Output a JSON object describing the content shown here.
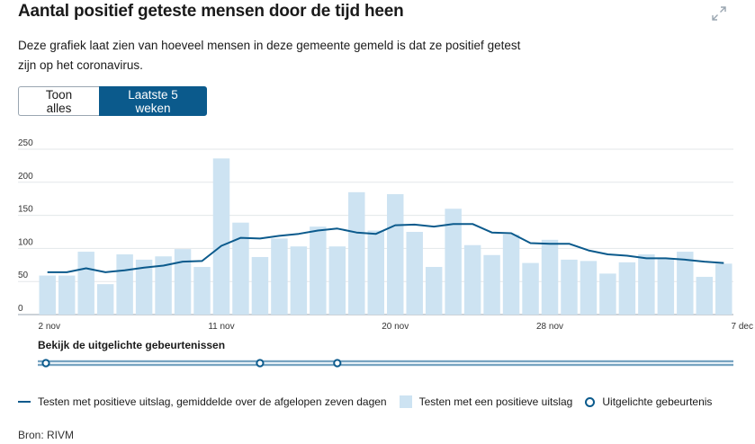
{
  "header": {
    "title": "Aantal positief geteste mensen door de tijd heen",
    "description": "Deze grafiek laat zien van hoeveel mensen in deze gemeente gemeld is dat ze positief getest zijn op het coronavirus.",
    "expand_icon": "expand-icon"
  },
  "toggle": {
    "show_all": "Toon alles",
    "last_5_weeks": "Laatste 5 weken",
    "selected": "last_5_weeks"
  },
  "chart_data": {
    "type": "bar",
    "title": "Aantal positief geteste mensen door de tijd heen",
    "ylim": [
      0,
      250
    ],
    "yticks": [
      0,
      50,
      100,
      150,
      200,
      250
    ],
    "x_tick_labels": [
      {
        "label": "2 nov",
        "index": 0
      },
      {
        "label": "11 nov",
        "index": 9
      },
      {
        "label": "20 nov",
        "index": 18
      },
      {
        "label": "28 nov",
        "index": 26
      },
      {
        "label": "7 dec",
        "index": 35
      }
    ],
    "series": [
      {
        "name": "Testen met een positieve uitslag",
        "kind": "bar",
        "color": "#cde3f2",
        "values": [
          59,
          59,
          95,
          46,
          91,
          83,
          88,
          99,
          72,
          236,
          139,
          87,
          115,
          103,
          133,
          103,
          185,
          127,
          182,
          125,
          72,
          160,
          105,
          90,
          121,
          78,
          113,
          83,
          81,
          62,
          79,
          91,
          84,
          95,
          57,
          77
        ]
      },
      {
        "name": "Testen met positieve uitslag, gemiddelde over de afgelopen zeven dagen",
        "kind": "line",
        "color": "#0b5a8c",
        "values": [
          64,
          64,
          70,
          64,
          67,
          71,
          74,
          80,
          81,
          104,
          116,
          115,
          119,
          122,
          127,
          130,
          124,
          122,
          135,
          136,
          133,
          137,
          137,
          124,
          123,
          108,
          107,
          107,
          97,
          91,
          89,
          85,
          85,
          83,
          80,
          78
        ]
      }
    ]
  },
  "events": {
    "title": "Bekijk de uitgelichte gebeurtenissen",
    "markers_at_index": [
      0,
      11,
      15
    ]
  },
  "legend": {
    "line_label": "Testen met positieve uitslag, gemiddelde over de afgelopen zeven dagen",
    "bar_label": "Testen met een positieve uitslag",
    "events_label": "Uitgelichte gebeurtenis"
  },
  "source": "Bron: RIVM",
  "colors": {
    "accent": "#0b5a8c",
    "bar": "#cde3f2",
    "grid": "#e3e7ea"
  }
}
